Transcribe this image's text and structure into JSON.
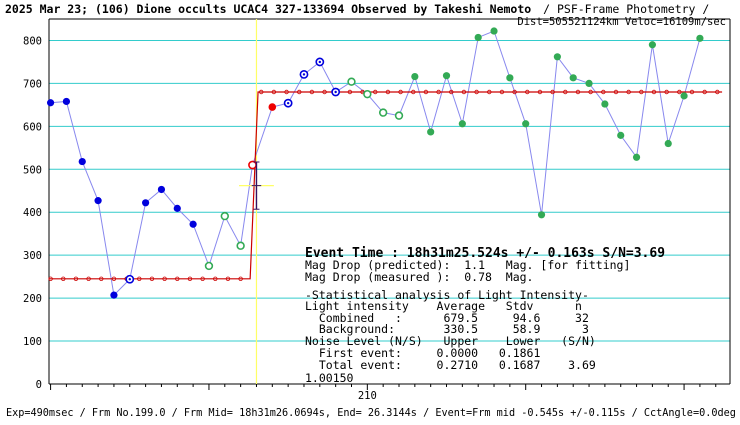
{
  "header": {
    "title_bold": "2025 Mar 23; (106) Dione occults UCAC4 327-133694 Observed by Takeshi Nemoto",
    "title_rest": "/ PSF-Frame Photometry /",
    "title_line2": "Dist=505521124km Veloc=16109m/sec"
  },
  "footer": "Exp=490msec / Frm No.199.0 / Frm Mid= 18h31m26.0694s, End= 26.3144s / Event=Frm mid -0.545s +/-0.115s / CctAngle=0.0deg",
  "axis_value_label": "1.00150",
  "stats": {
    "event_time": "Event Time : 18h31m25.524s  +/- 0.163s  S/N=3.69",
    "lines": [
      "Mag Drop (predicted):  1.1   Mag. [for fitting]",
      "Mag Drop (measured ):  0.78  Mag.",
      "-Statistical analysis of Light Intensity-",
      "Light intensity    Average   Stdv      n",
      "  Combined   :      679.5     94.6     32",
      "  Background:       330.5     58.9      3",
      "Noise Level (N/S)   Upper    Lower   (S/N)",
      "  First event:     0.0000   0.1861",
      "  Total event:     0.2710   0.1687    3.69"
    ]
  },
  "colors": {
    "background_points": "#0000dd",
    "occult_points": "#33aa55",
    "model_line": "#cc0000",
    "series_line": "#8888ee",
    "gridline": "#33cccc",
    "event_marker": "#ffff66",
    "event_point": "#ee0000",
    "error_bar": "#331166"
  },
  "chart_data": {
    "type": "line",
    "ylim": [
      0,
      850
    ],
    "yticks": [
      0,
      100,
      200,
      300,
      400,
      500,
      600,
      700,
      800
    ],
    "xticks": [
      210
    ],
    "xlim": [
      189.9,
      232.9
    ],
    "grid": true,
    "series": [
      {
        "values": [
          {
            "x": 190.0,
            "y": 655,
            "style": "blue"
          },
          {
            "x": 191.0,
            "y": 658,
            "style": "blue"
          },
          {
            "x": 192.0,
            "y": 518,
            "style": "blue"
          },
          {
            "x": 193.0,
            "y": 427,
            "style": "blue"
          },
          {
            "x": 194.0,
            "y": 207,
            "style": "blue"
          },
          {
            "x": 195.0,
            "y": 244,
            "style": "blue-ring"
          },
          {
            "x": 196.0,
            "y": 422,
            "style": "blue"
          },
          {
            "x": 197.0,
            "y": 453,
            "style": "blue"
          },
          {
            "x": 198.0,
            "y": 409,
            "style": "blue"
          },
          {
            "x": 199.0,
            "y": 372,
            "style": "blue"
          },
          {
            "x": 200.0,
            "y": 275,
            "style": "green-ring"
          },
          {
            "x": 201.0,
            "y": 391,
            "style": "green-ring"
          },
          {
            "x": 202.0,
            "y": 322,
            "style": "green-ring"
          },
          {
            "x": 202.75,
            "y": 510,
            "style": "red-ring"
          },
          {
            "x": 204.0,
            "y": 645,
            "style": "red"
          },
          {
            "x": 205.0,
            "y": 654,
            "style": "blue-ring"
          },
          {
            "x": 206.0,
            "y": 721,
            "style": "blue-ring"
          },
          {
            "x": 207.0,
            "y": 750,
            "style": "blue-ring"
          },
          {
            "x": 208.0,
            "y": 680,
            "style": "blue-ring"
          },
          {
            "x": 209.0,
            "y": 704,
            "style": "green-ring"
          },
          {
            "x": 210.0,
            "y": 675,
            "style": "green-ring"
          },
          {
            "x": 211.0,
            "y": 632,
            "style": "green-ring"
          },
          {
            "x": 212.0,
            "y": 625,
            "style": "green-ring"
          },
          {
            "x": 213.0,
            "y": 716,
            "style": "green"
          },
          {
            "x": 214.0,
            "y": 587,
            "style": "green"
          },
          {
            "x": 215.0,
            "y": 718,
            "style": "green"
          },
          {
            "x": 216.0,
            "y": 606,
            "style": "green"
          },
          {
            "x": 217.0,
            "y": 807,
            "style": "green"
          },
          {
            "x": 218.0,
            "y": 822,
            "style": "green"
          },
          {
            "x": 219.0,
            "y": 713,
            "style": "green"
          },
          {
            "x": 220.0,
            "y": 606,
            "style": "green"
          },
          {
            "x": 221.0,
            "y": 394,
            "style": "green"
          },
          {
            "x": 222.0,
            "y": 762,
            "style": "green"
          },
          {
            "x": 223.0,
            "y": 713,
            "style": "green"
          },
          {
            "x": 224.0,
            "y": 700,
            "style": "green"
          },
          {
            "x": 225.0,
            "y": 652,
            "style": "green"
          },
          {
            "x": 226.0,
            "y": 579,
            "style": "green"
          },
          {
            "x": 227.0,
            "y": 528,
            "style": "green"
          },
          {
            "x": 228.0,
            "y": 790,
            "style": "green"
          },
          {
            "x": 229.0,
            "y": 560,
            "style": "green"
          },
          {
            "x": 230.0,
            "y": 671,
            "style": "green"
          },
          {
            "x": 231.0,
            "y": 805,
            "style": "green"
          }
        ]
      }
    ],
    "model": {
      "low": 245,
      "high": 680,
      "x_start": 189.9,
      "x_drop_bottom": 202.6,
      "x_drop_top": 203.1,
      "x_end": 232.4,
      "marker_step": 0.8
    },
    "event": {
      "x": 203.0,
      "y": 462,
      "err_y": 55,
      "err_x": 0.5
    },
    "event_marker_x": 203.0
  }
}
